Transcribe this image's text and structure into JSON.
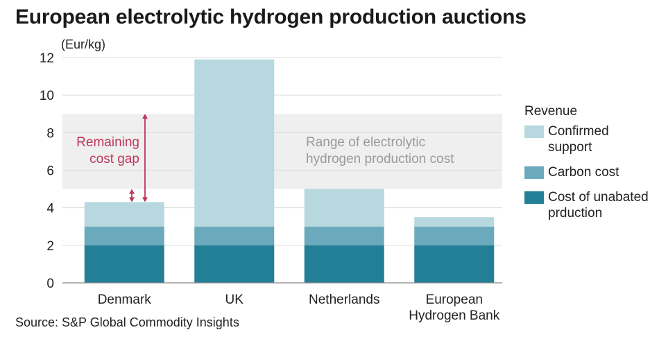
{
  "title": "European electrolytic hydrogen production auctions",
  "unit_label": "(Eur/kg)",
  "source": "Source: S&P Global Commodity Insights",
  "legend": {
    "title": "Revenue",
    "items": [
      {
        "label": "Confirmed support",
        "color": "#b7d8df"
      },
      {
        "label": "Carbon cost",
        "color": "#6aaabc"
      },
      {
        "label": "Cost of unabated prduction",
        "color": "#237f96"
      }
    ]
  },
  "annotations": {
    "range_band": "Range of electrolytic hydrogen production cost",
    "cost_gap": "Remaining cost gap"
  },
  "colors": {
    "band": "#efefef",
    "gap_arrow": "#c0355a",
    "grid": "#dcdcdc",
    "axis": "#888888"
  },
  "chart_data": {
    "type": "bar",
    "stacked": true,
    "categories": [
      "Denmark",
      "UK",
      "Netherlands",
      "European Hydrogen Bank"
    ],
    "series": [
      {
        "name": "Cost of unabated prduction",
        "values": [
          2.0,
          2.0,
          2.0,
          2.0
        ]
      },
      {
        "name": "Carbon cost",
        "values": [
          1.0,
          1.0,
          1.0,
          1.0
        ]
      },
      {
        "name": "Confirmed support",
        "values": [
          1.3,
          8.9,
          2.0,
          0.5
        ]
      }
    ],
    "ylim": [
      0,
      12
    ],
    "yticks": [
      0,
      2,
      4,
      6,
      8,
      10,
      12
    ],
    "range_band": [
      5.0,
      9.0
    ],
    "cost_gap": {
      "category": "Denmark",
      "from": 4.3,
      "to": 9.0,
      "small_from": 4.3,
      "small_to": 5.0
    },
    "ylabel": "(Eur/kg)",
    "grid": true
  }
}
